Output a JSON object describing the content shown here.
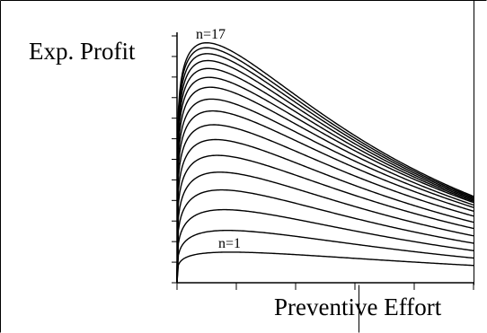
{
  "chart_data": {
    "type": "line",
    "title": "",
    "xlabel": "Preventive Effort",
    "ylabel": "Exp. Profit",
    "xlim": [
      0,
      5
    ],
    "ylim": [
      0,
      1
    ],
    "x_ticks": 6,
    "y_ticks": 12,
    "grid": false,
    "legend": "none",
    "annotations": [
      {
        "text": "n=17",
        "series": 17
      },
      {
        "text": "n=1",
        "series": 1
      }
    ],
    "series": [
      {
        "n": 1,
        "peak_x": 0.9,
        "peak_y": 0.124,
        "end_y": 0.07
      },
      {
        "n": 2,
        "peak_x": 0.85,
        "peak_y": 0.212,
        "end_y": 0.1
      },
      {
        "n": 3,
        "peak_x": 0.8,
        "peak_y": 0.296,
        "end_y": 0.13
      },
      {
        "n": 4,
        "peak_x": 0.75,
        "peak_y": 0.376,
        "end_y": 0.16
      },
      {
        "n": 5,
        "peak_x": 0.72,
        "peak_y": 0.448,
        "end_y": 0.19
      },
      {
        "n": 6,
        "peak_x": 0.68,
        "peak_y": 0.516,
        "end_y": 0.22
      },
      {
        "n": 7,
        "peak_x": 0.65,
        "peak_y": 0.58,
        "end_y": 0.245
      },
      {
        "n": 8,
        "peak_x": 0.62,
        "peak_y": 0.64,
        "end_y": 0.27
      },
      {
        "n": 9,
        "peak_x": 0.6,
        "peak_y": 0.696,
        "end_y": 0.29
      },
      {
        "n": 10,
        "peak_x": 0.58,
        "peak_y": 0.744,
        "end_y": 0.305
      },
      {
        "n": 11,
        "peak_x": 0.56,
        "peak_y": 0.792,
        "end_y": 0.315
      },
      {
        "n": 12,
        "peak_x": 0.54,
        "peak_y": 0.832,
        "end_y": 0.325
      },
      {
        "n": 13,
        "peak_x": 0.53,
        "peak_y": 0.868,
        "end_y": 0.33
      },
      {
        "n": 14,
        "peak_x": 0.52,
        "peak_y": 0.9,
        "end_y": 0.335
      },
      {
        "n": 15,
        "peak_x": 0.51,
        "peak_y": 0.928,
        "end_y": 0.34
      },
      {
        "n": 16,
        "peak_x": 0.5,
        "peak_y": 0.952,
        "end_y": 0.345
      },
      {
        "n": 17,
        "peak_x": 0.5,
        "peak_y": 0.972,
        "end_y": 0.35
      }
    ]
  }
}
